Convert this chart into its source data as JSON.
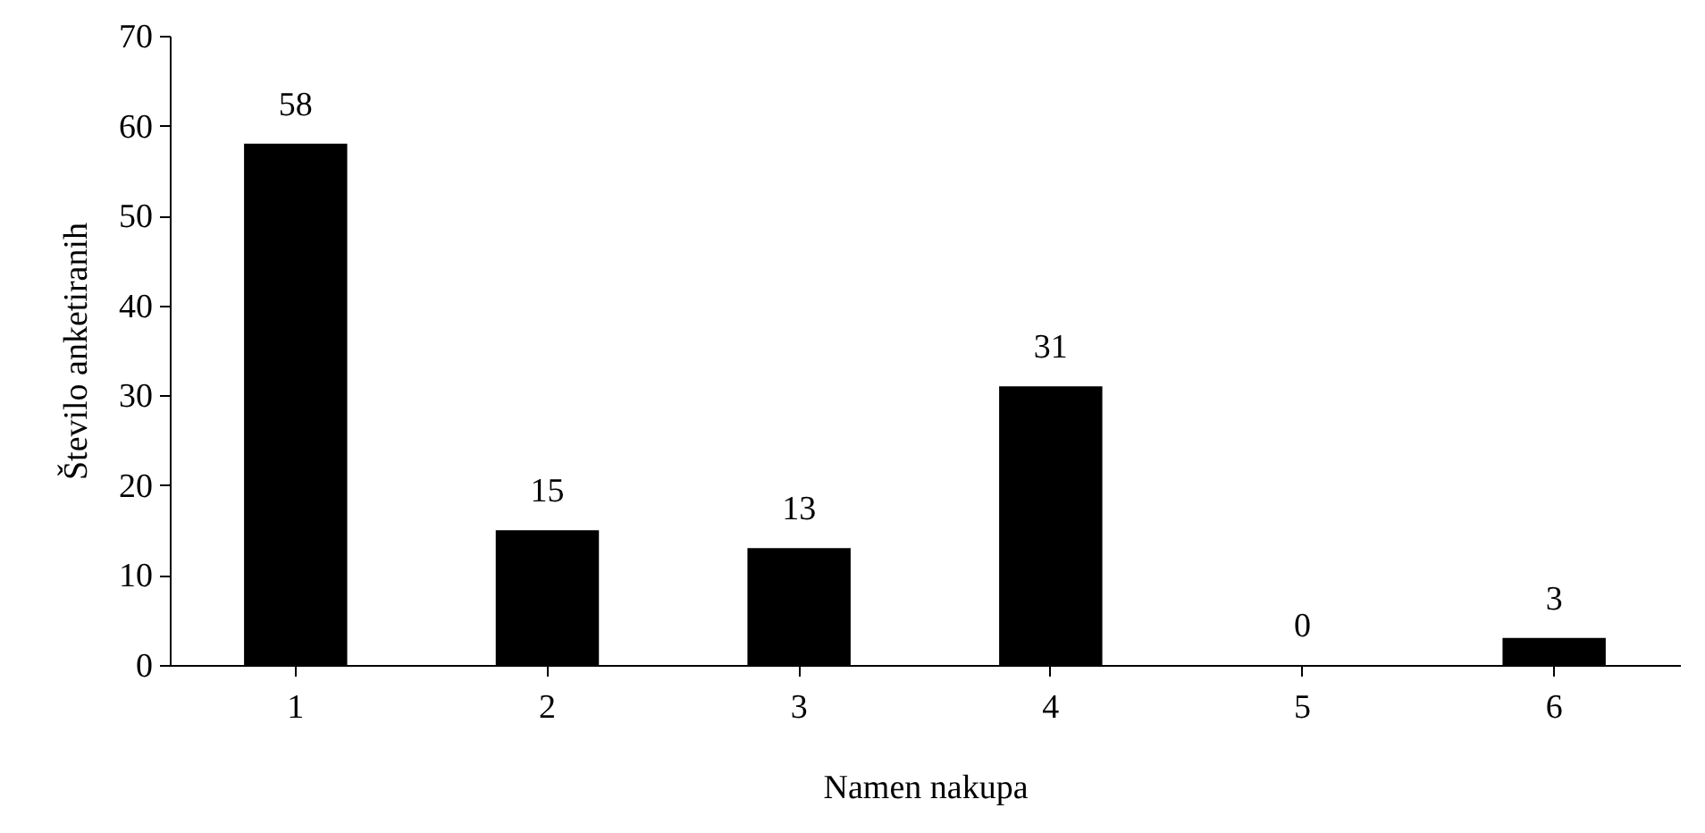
{
  "chart_data": {
    "type": "bar",
    "xlabel": "Namen nakupa",
    "ylabel": "Število anketiranih",
    "categories": [
      "1",
      "2",
      "3",
      "4",
      "5",
      "6"
    ],
    "values": [
      58,
      15,
      13,
      31,
      0,
      3
    ],
    "color": "#000000",
    "ylim": [
      0,
      70
    ],
    "yticks": [
      0,
      10,
      20,
      30,
      40,
      50,
      60,
      70
    ],
    "grid": false,
    "data_labels": true
  }
}
